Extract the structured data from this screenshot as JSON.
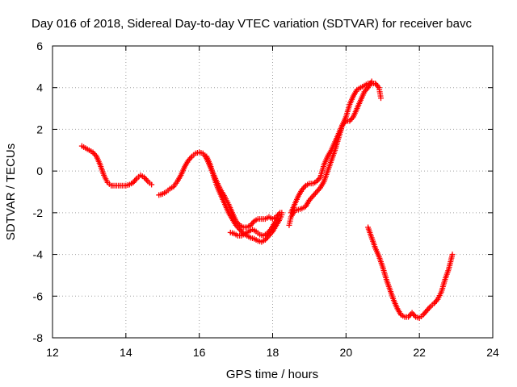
{
  "chart_data": {
    "type": "scatter",
    "title": "Day 016 of 2018, Sidereal Day-to-day VTEC variation (SDTVAR) for receiver bavc",
    "xlabel": "GPS time / hours",
    "ylabel": "SDTVAR / TECUs",
    "xlim": [
      12,
      24
    ],
    "ylim": [
      -8,
      6
    ],
    "xticks": [
      12,
      14,
      16,
      18,
      20,
      22,
      24
    ],
    "yticks": [
      -8,
      -6,
      -4,
      -2,
      0,
      2,
      4,
      6
    ],
    "grid": true,
    "marker": "plus",
    "color": "#ff0000",
    "series": [
      {
        "name": "segment-1",
        "points": [
          [
            12.8,
            1.2
          ],
          [
            12.9,
            1.1
          ],
          [
            13.0,
            1.0
          ],
          [
            13.1,
            0.9
          ],
          [
            13.2,
            0.7
          ],
          [
            13.3,
            0.3
          ],
          [
            13.4,
            -0.2
          ],
          [
            13.5,
            -0.55
          ],
          [
            13.6,
            -0.7
          ],
          [
            13.7,
            -0.7
          ],
          [
            13.8,
            -0.7
          ],
          [
            13.9,
            -0.7
          ],
          [
            14.0,
            -0.7
          ],
          [
            14.1,
            -0.65
          ],
          [
            14.2,
            -0.55
          ],
          [
            14.3,
            -0.35
          ],
          [
            14.4,
            -0.2
          ],
          [
            14.5,
            -0.3
          ],
          [
            14.6,
            -0.5
          ],
          [
            14.7,
            -0.65
          ]
        ]
      },
      {
        "name": "segment-2",
        "points": [
          [
            14.9,
            -1.15
          ],
          [
            15.0,
            -1.1
          ],
          [
            15.1,
            -1.0
          ],
          [
            15.2,
            -0.85
          ],
          [
            15.3,
            -0.75
          ],
          [
            15.4,
            -0.5
          ],
          [
            15.5,
            -0.2
          ],
          [
            15.6,
            0.2
          ],
          [
            15.7,
            0.5
          ],
          [
            15.8,
            0.7
          ],
          [
            15.9,
            0.85
          ],
          [
            16.0,
            0.9
          ],
          [
            16.1,
            0.85
          ],
          [
            16.2,
            0.6
          ],
          [
            16.3,
            0.2
          ],
          [
            16.4,
            -0.2
          ],
          [
            16.5,
            -0.6
          ],
          [
            16.6,
            -0.95
          ],
          [
            16.7,
            -1.25
          ],
          [
            16.8,
            -1.6
          ],
          [
            16.9,
            -2.0
          ],
          [
            17.0,
            -2.4
          ],
          [
            17.1,
            -2.6
          ],
          [
            17.2,
            -2.7
          ],
          [
            17.3,
            -2.7
          ],
          [
            17.4,
            -2.6
          ],
          [
            17.5,
            -2.4
          ],
          [
            17.6,
            -2.3
          ],
          [
            17.7,
            -2.3
          ],
          [
            17.8,
            -2.3
          ],
          [
            17.9,
            -2.2
          ],
          [
            18.0,
            -2.3
          ],
          [
            18.1,
            -2.2
          ],
          [
            18.2,
            -2.0
          ],
          [
            18.25,
            -2.0
          ]
        ]
      },
      {
        "name": "segment-2-low-branch",
        "points": [
          [
            16.2,
            0.7
          ],
          [
            16.3,
            0.3
          ],
          [
            16.4,
            -0.3
          ],
          [
            16.5,
            -0.8
          ],
          [
            16.6,
            -1.2
          ],
          [
            16.7,
            -1.6
          ],
          [
            16.8,
            -2.0
          ],
          [
            16.9,
            -2.3
          ],
          [
            17.0,
            -2.6
          ],
          [
            17.1,
            -2.8
          ],
          [
            17.2,
            -3.0
          ],
          [
            17.3,
            -3.1
          ],
          [
            17.4,
            -3.2
          ],
          [
            17.5,
            -3.25
          ],
          [
            17.6,
            -3.35
          ],
          [
            17.7,
            -3.4
          ],
          [
            17.8,
            -3.3
          ],
          [
            17.9,
            -3.1
          ],
          [
            18.0,
            -2.9
          ],
          [
            18.1,
            -2.6
          ],
          [
            18.2,
            -2.3
          ],
          [
            18.25,
            -2.1
          ]
        ]
      },
      {
        "name": "segment-2-mid-branch",
        "points": [
          [
            16.85,
            -2.95
          ],
          [
            16.95,
            -3.0
          ],
          [
            17.05,
            -3.1
          ],
          [
            17.15,
            -3.1
          ],
          [
            17.25,
            -3.0
          ],
          [
            17.35,
            -2.9
          ],
          [
            17.45,
            -2.8
          ],
          [
            17.55,
            -2.9
          ],
          [
            17.65,
            -3.05
          ],
          [
            17.75,
            -3.1
          ],
          [
            17.85,
            -3.0
          ],
          [
            17.95,
            -2.8
          ],
          [
            18.05,
            -2.5
          ],
          [
            18.15,
            -2.3
          ]
        ]
      },
      {
        "name": "segment-3",
        "points": [
          [
            18.45,
            -2.6
          ],
          [
            18.5,
            -2.2
          ],
          [
            18.6,
            -1.9
          ],
          [
            18.7,
            -1.85
          ],
          [
            18.8,
            -1.8
          ],
          [
            18.9,
            -1.7
          ],
          [
            19.0,
            -1.4
          ],
          [
            19.1,
            -1.2
          ],
          [
            19.2,
            -1.0
          ],
          [
            19.3,
            -0.8
          ],
          [
            19.4,
            -0.5
          ],
          [
            19.5,
            0.0
          ],
          [
            19.6,
            0.5
          ],
          [
            19.7,
            1.0
          ],
          [
            19.8,
            1.6
          ],
          [
            19.9,
            2.2
          ],
          [
            20.0,
            2.6
          ],
          [
            20.1,
            3.2
          ],
          [
            20.2,
            3.6
          ],
          [
            20.3,
            3.9
          ],
          [
            20.4,
            4.0
          ],
          [
            20.5,
            4.1
          ],
          [
            20.6,
            4.2
          ],
          [
            20.7,
            4.2
          ],
          [
            20.8,
            4.2
          ],
          [
            20.9,
            4.0
          ],
          [
            20.95,
            3.5
          ]
        ]
      },
      {
        "name": "segment-3-upper-branch",
        "points": [
          [
            18.5,
            -2.0
          ],
          [
            18.6,
            -1.6
          ],
          [
            18.7,
            -1.2
          ],
          [
            18.8,
            -0.9
          ],
          [
            18.9,
            -0.7
          ],
          [
            19.0,
            -0.6
          ],
          [
            19.1,
            -0.6
          ],
          [
            19.2,
            -0.5
          ],
          [
            19.3,
            -0.3
          ],
          [
            19.4,
            0.3
          ],
          [
            19.5,
            0.7
          ],
          [
            19.6,
            1.0
          ],
          [
            19.7,
            1.4
          ],
          [
            19.8,
            1.8
          ],
          [
            19.9,
            2.2
          ],
          [
            20.0,
            2.4
          ],
          [
            20.1,
            2.4
          ],
          [
            20.2,
            2.6
          ],
          [
            20.3,
            3.0
          ],
          [
            20.4,
            3.4
          ],
          [
            20.5,
            3.8
          ],
          [
            20.6,
            4.0
          ],
          [
            20.7,
            4.3
          ]
        ]
      },
      {
        "name": "segment-4",
        "points": [
          [
            20.6,
            -2.7
          ],
          [
            20.7,
            -3.2
          ],
          [
            20.8,
            -3.7
          ],
          [
            20.9,
            -4.1
          ],
          [
            21.0,
            -4.6
          ],
          [
            21.1,
            -5.2
          ],
          [
            21.2,
            -5.7
          ],
          [
            21.3,
            -6.2
          ],
          [
            21.4,
            -6.6
          ],
          [
            21.5,
            -6.9
          ],
          [
            21.6,
            -7.0
          ],
          [
            21.7,
            -7.0
          ],
          [
            21.8,
            -6.8
          ],
          [
            21.9,
            -7.0
          ],
          [
            22.0,
            -7.05
          ],
          [
            22.1,
            -6.9
          ],
          [
            22.2,
            -6.7
          ],
          [
            22.3,
            -6.5
          ],
          [
            22.4,
            -6.35
          ],
          [
            22.5,
            -6.15
          ],
          [
            22.6,
            -5.8
          ],
          [
            22.7,
            -5.2
          ],
          [
            22.8,
            -4.7
          ],
          [
            22.9,
            -4.0
          ]
        ]
      }
    ]
  }
}
